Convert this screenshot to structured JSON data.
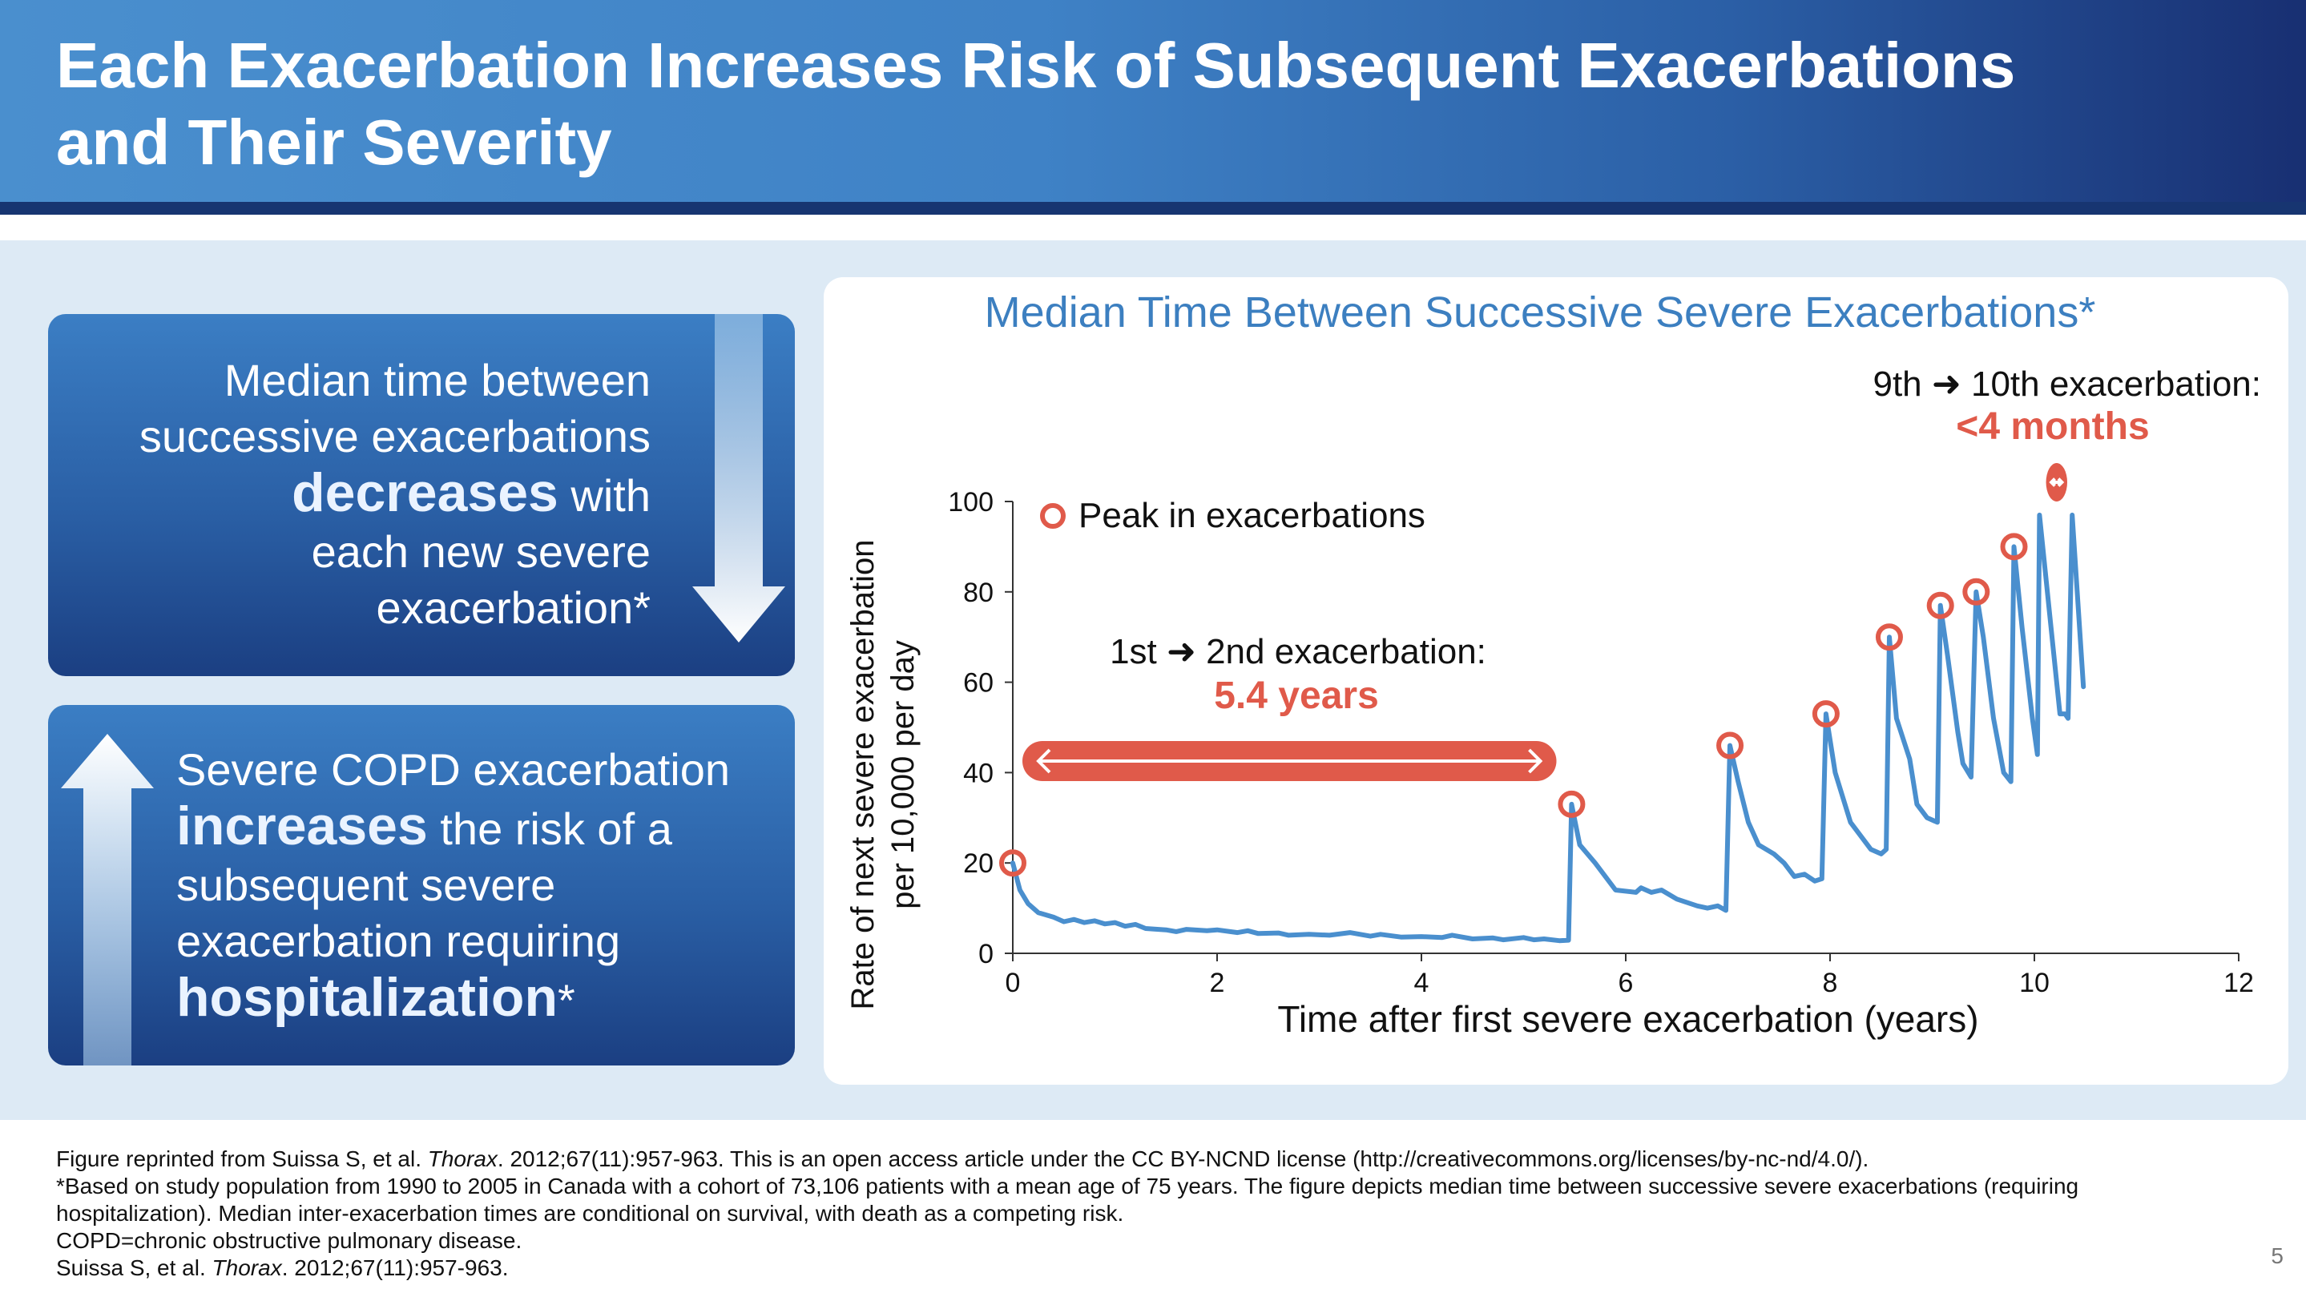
{
  "slide": {
    "title_line1": "Each Exacerbation Increases Risk of Subsequent Exacerbations",
    "title_line2": "and Their Severity",
    "page_number": "5",
    "colors": {
      "header_light": "#4a8fce",
      "header_dark": "#182f72",
      "accent_red": "#e05a4a",
      "series_blue": "#4a8fce",
      "chart_title_blue": "#3c7fc0"
    }
  },
  "panels": {
    "top": {
      "text_l1": "Median time between",
      "text_l2": "successive exacerbations",
      "emph": "decreases",
      "text_l3_rest": " with",
      "text_l4": "each new severe",
      "text_l5": "exacerbation*",
      "icon": "down-arrow-icon"
    },
    "bottom": {
      "text_l1": "Severe COPD exacerbation",
      "emph1": "increases",
      "text_l2_rest": " the risk of a",
      "text_l3": "subsequent severe",
      "text_l4": "exacerbation requiring",
      "emph2": "hospitalization",
      "text_l5_rest": "*",
      "icon": "up-arrow-icon"
    }
  },
  "chart_data": {
    "type": "line",
    "title": "Median Time Between Successive Severe Exacerbations*",
    "xlabel": "Time after first severe exacerbation (years)",
    "ylabel_line1": "Rate of next severe exacerbation",
    "ylabel_line2": "per 10,000 per day",
    "xlim": [
      0,
      12
    ],
    "ylim": [
      0,
      100
    ],
    "x_ticks": [
      "0",
      "2",
      "4",
      "6",
      "8",
      "10",
      "12"
    ],
    "y_ticks": [
      "0",
      "20",
      "40",
      "60",
      "80",
      "100"
    ],
    "grid": false,
    "legend": {
      "label": "Peak in exacerbations",
      "placement": "top-left"
    },
    "series": [
      {
        "values": [
          [
            0,
            20
          ],
          [
            0.07,
            14
          ],
          [
            0.15,
            11
          ],
          [
            0.25,
            9
          ],
          [
            0.4,
            8
          ],
          [
            0.5,
            7
          ],
          [
            0.6,
            7.5
          ],
          [
            0.7,
            6.8
          ],
          [
            0.8,
            7.2
          ],
          [
            0.9,
            6.5
          ],
          [
            1.0,
            6.8
          ],
          [
            1.1,
            6.0
          ],
          [
            1.2,
            6.4
          ],
          [
            1.3,
            5.5
          ],
          [
            1.5,
            5.2
          ],
          [
            1.6,
            4.8
          ],
          [
            1.7,
            5.3
          ],
          [
            1.9,
            5.0
          ],
          [
            2.0,
            5.2
          ],
          [
            2.2,
            4.6
          ],
          [
            2.3,
            5.0
          ],
          [
            2.4,
            4.4
          ],
          [
            2.6,
            4.5
          ],
          [
            2.7,
            4.0
          ],
          [
            2.9,
            4.2
          ],
          [
            3.1,
            4.0
          ],
          [
            3.3,
            4.6
          ],
          [
            3.5,
            3.8
          ],
          [
            3.6,
            4.2
          ],
          [
            3.8,
            3.6
          ],
          [
            4.0,
            3.7
          ],
          [
            4.2,
            3.5
          ],
          [
            4.3,
            4.0
          ],
          [
            4.5,
            3.2
          ],
          [
            4.7,
            3.4
          ],
          [
            4.8,
            3.0
          ],
          [
            5.0,
            3.5
          ],
          [
            5.1,
            3.0
          ],
          [
            5.2,
            3.2
          ],
          [
            5.35,
            2.8
          ],
          [
            5.44,
            2.9
          ],
          [
            5.47,
            33
          ],
          [
            5.55,
            24
          ],
          [
            5.7,
            20
          ],
          [
            5.9,
            14
          ],
          [
            6.1,
            13.5
          ],
          [
            6.15,
            14.5
          ],
          [
            6.25,
            13.5
          ],
          [
            6.35,
            14
          ],
          [
            6.5,
            12
          ],
          [
            6.7,
            10.5
          ],
          [
            6.8,
            10
          ],
          [
            6.9,
            10.5
          ],
          [
            6.98,
            9.5
          ],
          [
            7.02,
            46
          ],
          [
            7.1,
            38
          ],
          [
            7.2,
            29
          ],
          [
            7.3,
            24
          ],
          [
            7.45,
            22
          ],
          [
            7.55,
            20
          ],
          [
            7.65,
            17
          ],
          [
            7.75,
            17.5
          ],
          [
            7.85,
            16
          ],
          [
            7.92,
            16.5
          ],
          [
            7.96,
            53
          ],
          [
            8.05,
            40
          ],
          [
            8.2,
            29
          ],
          [
            8.3,
            26
          ],
          [
            8.4,
            23
          ],
          [
            8.5,
            22
          ],
          [
            8.55,
            23
          ],
          [
            8.58,
            70
          ],
          [
            8.65,
            52
          ],
          [
            8.78,
            43
          ],
          [
            8.85,
            33
          ],
          [
            8.95,
            30
          ],
          [
            9.05,
            29
          ],
          [
            9.08,
            77
          ],
          [
            9.15,
            66
          ],
          [
            9.25,
            49
          ],
          [
            9.3,
            42
          ],
          [
            9.38,
            39
          ],
          [
            9.43,
            80
          ],
          [
            9.5,
            70
          ],
          [
            9.6,
            52
          ],
          [
            9.7,
            40
          ],
          [
            9.77,
            38
          ],
          [
            9.8,
            90
          ],
          [
            9.88,
            72
          ],
          [
            9.98,
            52
          ],
          [
            10.03,
            44
          ],
          [
            10.05,
            97
          ],
          [
            10.15,
            75
          ],
          [
            10.25,
            53
          ],
          [
            10.3,
            53
          ],
          [
            10.33,
            52
          ],
          [
            10.37,
            97
          ],
          [
            10.48,
            59
          ]
        ]
      }
    ],
    "peak_markers": [
      [
        0,
        20
      ],
      [
        5.47,
        33
      ],
      [
        7.02,
        46
      ],
      [
        7.96,
        53
      ],
      [
        8.58,
        70
      ],
      [
        9.08,
        77
      ],
      [
        9.43,
        80
      ],
      [
        9.8,
        90
      ]
    ],
    "annotations": {
      "first_label": "1st ➜ 2nd exacerbation:",
      "first_value": "5.4 years",
      "first_span_years": [
        0,
        5.4
      ],
      "last_label": "9th ➜ 10th exacerbation:",
      "last_value": "<4 months",
      "last_span_years": [
        10.05,
        10.37
      ]
    }
  },
  "footnotes": {
    "line1_pre": "Figure reprinted from Suissa S, et al. ",
    "line1_journal": "Thorax",
    "line1_post": ". 2012;67(11):957-963. This is an open access article under the CC BY-NCND license (http://creativecommons.org/licenses/by-nc-nd/4.0/).",
    "line2": "*Based on study population from 1990 to 2005 in Canada with a cohort of 73,106 patients with a mean age of 75 years. The figure depicts median time between successive severe exacerbations (requiring",
    "line3": "hospitalization). Median inter-exacerbation times are conditional on survival, with death as a competing risk.",
    "line4": "COPD=chronic obstructive pulmonary disease.",
    "line5_pre": "Suissa S, et al. ",
    "line5_journal": "Thorax",
    "line5_post": ". 2012;67(11):957-963."
  }
}
